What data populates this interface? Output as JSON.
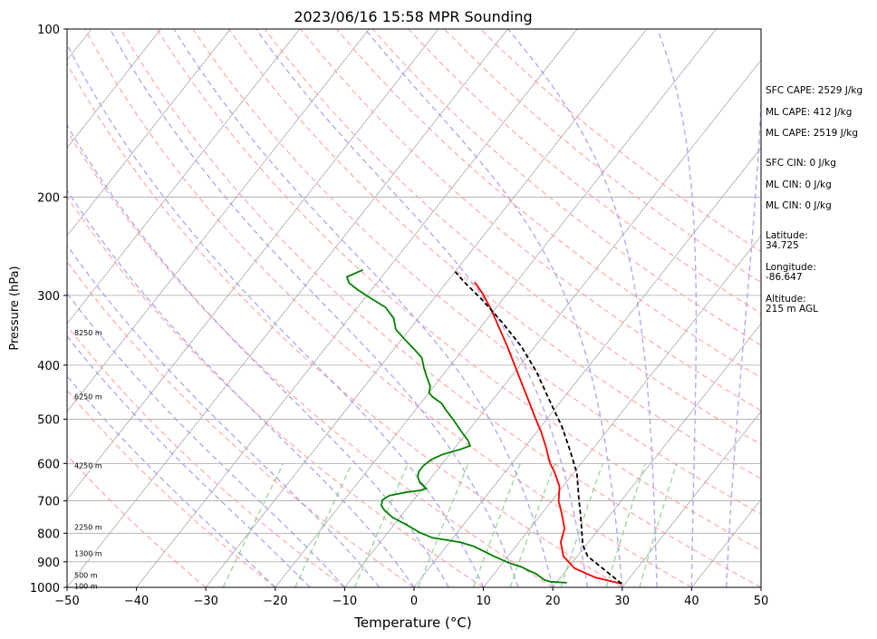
{
  "chart_data": {
    "type": "line",
    "title": "2023/06/16 15:58 MPR Sounding",
    "xlabel": "Temperature (°C)",
    "ylabel": "Pressure (hPa)",
    "xlim": [
      -50,
      50
    ],
    "ylim": [
      1000,
      100
    ],
    "y_scale": "log",
    "grid": true,
    "x_ticks": [
      "−50",
      "−40",
      "−30",
      "−20",
      "−10",
      "0",
      "10",
      "20",
      "30",
      "40",
      "50"
    ],
    "y_ticks": [
      "100",
      "200",
      "300",
      "400",
      "500",
      "600",
      "700",
      "800",
      "900",
      "1000"
    ],
    "height_labels": [
      "8250 m",
      "6250 m",
      "4250 m",
      "2250 m",
      "1300 m",
      "500 m",
      "100 m"
    ],
    "series": [
      {
        "color": "#ff0000",
        "points": [
          [
            29.5,
            985
          ],
          [
            25,
            960
          ],
          [
            21,
            925
          ],
          [
            18,
            880
          ],
          [
            16,
            830
          ],
          [
            15,
            785
          ],
          [
            13,
            740
          ],
          [
            11,
            700
          ],
          [
            9.5,
            660
          ],
          [
            7,
            620
          ],
          [
            5.5,
            600
          ],
          [
            3,
            560
          ],
          [
            0.5,
            525
          ],
          [
            -2,
            495
          ],
          [
            -5,
            460
          ],
          [
            -8,
            428
          ],
          [
            -11,
            398
          ],
          [
            -14,
            370
          ],
          [
            -17,
            345
          ],
          [
            -20.5,
            318
          ],
          [
            -23.5,
            298
          ],
          [
            -26,
            284
          ]
        ]
      },
      {
        "color": "#008000",
        "points": [
          [
            21.5,
            981
          ],
          [
            19,
            977
          ],
          [
            18,
            970
          ],
          [
            17,
            958
          ],
          [
            16,
            945
          ],
          [
            14.5,
            932
          ],
          [
            13,
            918
          ],
          [
            11,
            905
          ],
          [
            8,
            880
          ],
          [
            6,
            862
          ],
          [
            4,
            845
          ],
          [
            1.5,
            830
          ],
          [
            -3,
            815
          ],
          [
            -5.5,
            797
          ],
          [
            -8.5,
            770
          ],
          [
            -11,
            750
          ],
          [
            -13,
            728
          ],
          [
            -14,
            714
          ],
          [
            -14.5,
            698
          ],
          [
            -14,
            685
          ],
          [
            -12,
            676
          ],
          [
            -10,
            670
          ],
          [
            -9.5,
            665
          ],
          [
            -11,
            650
          ],
          [
            -12,
            635
          ],
          [
            -12.5,
            620
          ],
          [
            -12.5,
            605
          ],
          [
            -12,
            590
          ],
          [
            -11,
            578
          ],
          [
            -9,
            566
          ],
          [
            -8,
            558
          ],
          [
            -9,
            545
          ],
          [
            -11,
            525
          ],
          [
            -13.5,
            500
          ],
          [
            -15.5,
            482
          ],
          [
            -17,
            468
          ],
          [
            -19,
            456
          ],
          [
            -20,
            448
          ],
          [
            -20.5,
            437
          ],
          [
            -22,
            421
          ],
          [
            -23.5,
            405
          ],
          [
            -25,
            388
          ],
          [
            -27,
            375
          ],
          [
            -29.5,
            360
          ],
          [
            -32,
            345
          ],
          [
            -33.5,
            330
          ],
          [
            -36,
            315
          ],
          [
            -39,
            304
          ],
          [
            -42,
            293
          ],
          [
            -44,
            285
          ],
          [
            -45,
            278
          ],
          [
            -43.5,
            270
          ]
        ]
      },
      {
        "color": "#000000",
        "dashed": true,
        "points": [
          [
            29.5,
            985
          ],
          [
            21.5,
            880
          ],
          [
            19.5,
            840
          ],
          [
            16.5,
            760
          ],
          [
            13.5,
            690
          ],
          [
            10.5,
            625
          ],
          [
            7,
            570
          ],
          [
            3,
            515
          ],
          [
            -2,
            460
          ],
          [
            -7,
            410
          ],
          [
            -12,
            370
          ],
          [
            -17.5,
            335
          ],
          [
            -23,
            305
          ],
          [
            -27.5,
            284
          ],
          [
            -30,
            272
          ]
        ]
      }
    ]
  },
  "side_labels": {
    "sfc_cape": "SFC CAPE: 2529 J/kg",
    "ml_cape_1": "ML CAPE: 412 J/kg",
    "ml_cape_2": "ML CAPE: 2519 J/kg",
    "sfc_cin": "SFC CIN: 0 J/kg",
    "ml_cin_1": "ML CIN: 0 J/kg",
    "ml_cin_2": "ML CIN: 0 J/kg",
    "latitude": "Latitude:\n34.725",
    "longitude": "Longitude:\n-86.647",
    "altitude": "Altitude:\n215 m AGL"
  },
  "colors": {
    "temperature": "#ff0000",
    "dewpoint": "#008000",
    "parcel": "#000000",
    "dry_adiabat": "#ff9999",
    "moist_adiabat": "#9999ee",
    "mixing_ratio": "#88cc88",
    "isotherm": "#aaaaaa"
  }
}
